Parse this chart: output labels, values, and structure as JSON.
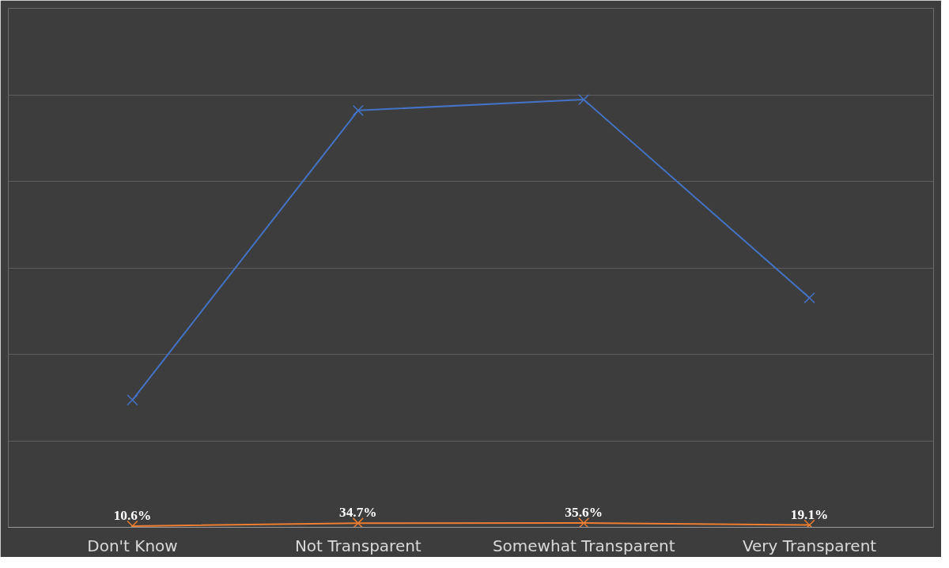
{
  "chart_data": {
    "type": "line",
    "categories": [
      "Don't Know",
      "Not Transparent",
      "Somewhat Transparent",
      "Very Transparent"
    ],
    "grid": "y",
    "tick_labels": "x",
    "ylim": [
      0,
      43.2
    ],
    "yticks": [
      {
        "value": 0,
        "label": null
      },
      {
        "value": 7.2,
        "label": null
      },
      {
        "value": 14.4,
        "label": null
      },
      {
        "value": 21.6,
        "label": null
      },
      {
        "value": 28.8,
        "label": null
      },
      {
        "value": 36,
        "label": null
      },
      {
        "value": 43.2,
        "label": null
      }
    ],
    "series": [
      {
        "color": "#4472c4",
        "values": [
          10.6,
          34.7,
          35.6,
          19.1
        ],
        "marker": "cross"
      },
      {
        "color": "#ed7d31",
        "values": [
          0.106,
          0.347,
          0.356,
          0.191
        ],
        "marker": "cross",
        "value_labels": [
          "10.6%",
          "34.7%",
          "35.6%",
          "19.1%"
        ]
      }
    ]
  }
}
